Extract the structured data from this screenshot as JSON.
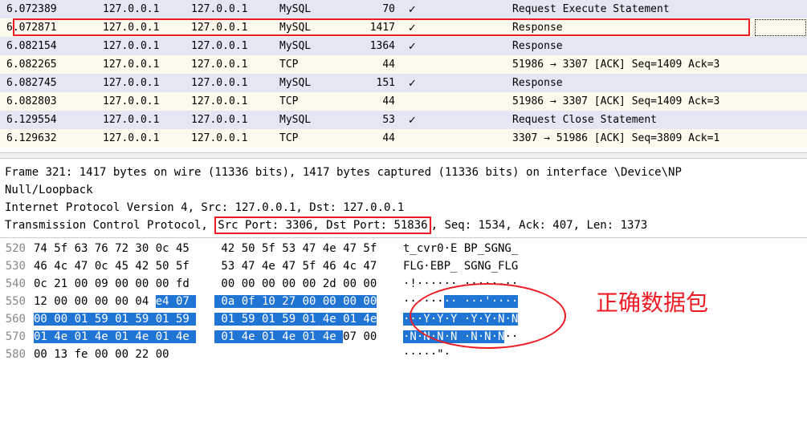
{
  "colors": {
    "row_normal_bg": "#e4e6f4",
    "row_selected_bg": "#fcfaec",
    "highlight_bg": "#2074d4",
    "highlight_fg": "#ffffff",
    "annotation_red": "#ed1c24",
    "offset_gray": "#888888"
  },
  "packet_list": {
    "rows": [
      {
        "time": "6.072389",
        "src": "127.0.0.1",
        "dst": "127.0.0.1",
        "proto": "MySQL",
        "len": "70",
        "check": "✓",
        "info": "Request Execute Statement",
        "bg": "normal"
      },
      {
        "time": "6.072871",
        "src": "127.0.0.1",
        "dst": "127.0.0.1",
        "proto": "MySQL",
        "len": "1417",
        "check": "✓",
        "info": "Response",
        "bg": "selected",
        "boxed": true
      },
      {
        "time": "6.082154",
        "src": "127.0.0.1",
        "dst": "127.0.0.1",
        "proto": "MySQL",
        "len": "1364",
        "check": "✓",
        "info": "Response",
        "bg": "normal"
      },
      {
        "time": "6.082265",
        "src": "127.0.0.1",
        "dst": "127.0.0.1",
        "proto": "TCP",
        "len": "44",
        "check": "",
        "info": "51986 → 3307 [ACK] Seq=1409 Ack=3",
        "bg": "selected"
      },
      {
        "time": "6.082745",
        "src": "127.0.0.1",
        "dst": "127.0.0.1",
        "proto": "MySQL",
        "len": "151",
        "check": "✓",
        "info": "Response",
        "bg": "normal"
      },
      {
        "time": "6.082803",
        "src": "127.0.0.1",
        "dst": "127.0.0.1",
        "proto": "TCP",
        "len": "44",
        "check": "",
        "info": "51986 → 3307 [ACK] Seq=1409 Ack=3",
        "bg": "selected"
      },
      {
        "time": "6.129554",
        "src": "127.0.0.1",
        "dst": "127.0.0.1",
        "proto": "MySQL",
        "len": "53",
        "check": "✓",
        "info": "Request Close Statement",
        "bg": "normal"
      },
      {
        "time": "6.129632",
        "src": "127.0.0.1",
        "dst": "127.0.0.1",
        "proto": "TCP",
        "len": "44",
        "check": "",
        "info": "3307 → 51986 [ACK] Seq=3809 Ack=1",
        "bg": "selected"
      }
    ]
  },
  "details": {
    "line1": "Frame 321: 1417 bytes on wire (11336 bits), 1417 bytes captured (11336 bits) on interface \\Device\\NP",
    "line2": "Null/Loopback",
    "line3": "Internet Protocol Version 4, Src: 127.0.0.1, Dst: 127.0.0.1",
    "line4_a": "Transmission Control Protocol, ",
    "line4_box": "Src Port: 3306, Dst Port: 51836",
    "line4_b": ", Seq: 1534, Ack: 407, Len: 1373"
  },
  "hex": {
    "rows": [
      {
        "off": "520",
        "b1": "74 5f 63 76 72 30 0c 45 ",
        "b2": " 42 50 5f 53 47 4e 47 5f",
        "asc": "t_cvr0·E BP_SGNG_",
        "hl1": [],
        "hl2": [],
        "hlA": []
      },
      {
        "off": "530",
        "b1": "46 4c 47 0c 45 42 50 5f ",
        "b2": " 53 47 4e 47 5f 46 4c 47",
        "asc": "FLG·EBP_ SGNG_FLG",
        "hl1": [],
        "hl2": [],
        "hlA": []
      },
      {
        "off": "540",
        "b1": "0c 21 00 09 00 00 00 fd ",
        "b2": " 00 00 00 00 00 2d 00 00",
        "asc": "·!······ ·····-··",
        "hl1": [],
        "hl2": [],
        "hlA": []
      },
      {
        "off": "550",
        "b1": "12 00 00 00 00 04 e4 07 ",
        "b2": " 0a 0f 10 27 00 00 00 00",
        "asc": "········ ···'····",
        "hl1": [
          [
            18,
            23
          ]
        ],
        "hl2": [
          [
            0,
            24
          ]
        ],
        "hlA": [
          [
            6,
            8
          ],
          [
            9,
            17
          ]
        ]
      },
      {
        "off": "560",
        "b1": "00 00 01 59 01 59 01 59 ",
        "b2": " 01 59 01 59 01 4e 01 4e",
        "asc": "···Y·Y·Y ·Y·Y·N·N",
        "hl1": [
          [
            0,
            23
          ]
        ],
        "hl2": [
          [
            0,
            24
          ]
        ],
        "hlA": [
          [
            0,
            17
          ]
        ]
      },
      {
        "off": "570",
        "b1": "01 4e 01 4e 01 4e 01 4e ",
        "b2": " 01 4e 01 4e 01 4e 07 00",
        "asc": "·N·N·N·N ·N·N·N··",
        "hl1": [
          [
            0,
            23
          ]
        ],
        "hl2": [
          [
            0,
            18
          ]
        ],
        "hlA": [
          [
            0,
            14
          ]
        ]
      },
      {
        "off": "580",
        "b1": "00 13 fe 00 00 22 00    ",
        "b2": "",
        "asc": "·····\"·",
        "hl1": [],
        "hl2": [],
        "hlA": []
      }
    ]
  },
  "annotation_text": "正确数据包"
}
